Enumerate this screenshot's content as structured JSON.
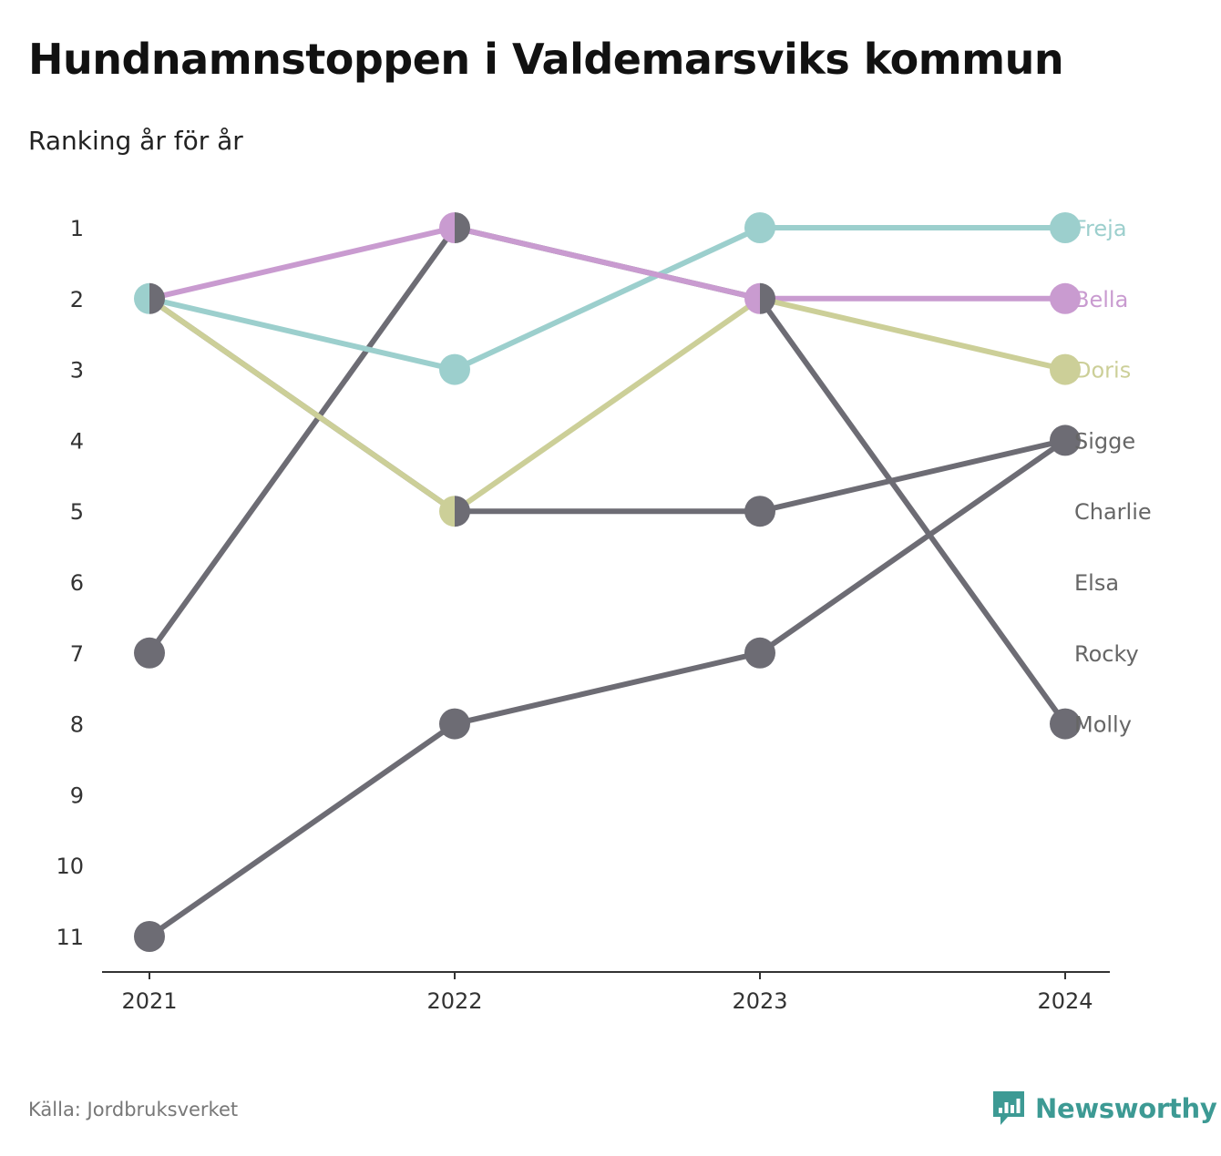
{
  "title": "Hundnamnstoppen i Valdemarsviks kommun",
  "subtitle": "Ranking år för år",
  "source": "Källa: Jordbruksverket",
  "brand": {
    "name": "Newsworthy",
    "icon": "bar-chart-speech-bubble-icon",
    "color": "#3d9a94"
  },
  "chart_data": {
    "type": "line",
    "chart_kind": "bump",
    "x": [
      "2021",
      "2022",
      "2023",
      "2024"
    ],
    "y_ticks": [
      1,
      2,
      3,
      4,
      5,
      6,
      7,
      8,
      9,
      10,
      11
    ],
    "ylim": [
      1,
      11
    ],
    "y_reversed": true,
    "grid": false,
    "legend": "labels at line ends, right",
    "series": [
      {
        "name": "Freja",
        "color": "#9ccfcd",
        "values": [
          2,
          3,
          1,
          1
        ]
      },
      {
        "name": "Bella",
        "color": "#c99bd0",
        "values": [
          2,
          1,
          2,
          2
        ]
      },
      {
        "name": "Doris",
        "color": "#cccf98",
        "values": [
          2,
          5,
          2,
          3
        ]
      },
      {
        "name": "Sigge",
        "color": "#6d6c74",
        "values": [
          11,
          8,
          7,
          4
        ]
      },
      {
        "name": "Charlie",
        "color": "#6d6c74",
        "values": [
          null,
          null,
          null,
          null
        ]
      },
      {
        "name": "Elsa",
        "color": "#6d6c74",
        "values": [
          null,
          null,
          null,
          null
        ]
      },
      {
        "name": "Rocky",
        "color": "#6d6c74",
        "values": [
          null,
          null,
          null,
          null
        ]
      },
      {
        "name": "Molly",
        "color": "#6d6c74",
        "values": [
          7,
          1,
          2,
          8
        ]
      },
      {
        "name": "",
        "color": "#6d6c74",
        "values": [
          2,
          5,
          5,
          4
        ]
      }
    ],
    "end_labels": [
      "Freja",
      "Bella",
      "Doris",
      "Sigge",
      "Charlie",
      "Elsa",
      "Rocky",
      "Molly"
    ],
    "end_label_ranks": [
      1,
      2,
      3,
      4,
      5,
      6,
      7,
      8
    ]
  }
}
